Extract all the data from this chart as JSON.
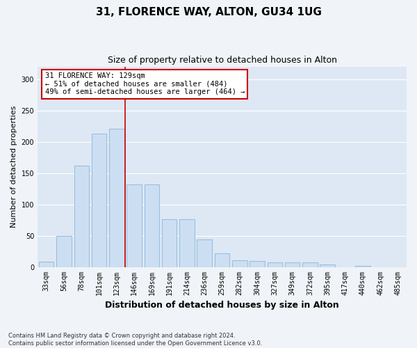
{
  "title": "31, FLORENCE WAY, ALTON, GU34 1UG",
  "subtitle": "Size of property relative to detached houses in Alton",
  "xlabel": "Distribution of detached houses by size in Alton",
  "ylabel": "Number of detached properties",
  "categories": [
    "33sqm",
    "56sqm",
    "78sqm",
    "101sqm",
    "123sqm",
    "146sqm",
    "169sqm",
    "191sqm",
    "214sqm",
    "236sqm",
    "259sqm",
    "282sqm",
    "304sqm",
    "327sqm",
    "349sqm",
    "372sqm",
    "395sqm",
    "417sqm",
    "440sqm",
    "462sqm",
    "485sqm"
  ],
  "values": [
    8,
    49,
    162,
    213,
    221,
    132,
    132,
    76,
    76,
    44,
    22,
    11,
    9,
    7,
    7,
    7,
    4,
    0,
    2,
    0,
    0
  ],
  "bar_color": "#ccdff2",
  "bar_edgecolor": "#9bbfde",
  "vline_color": "#cc0000",
  "vline_index": 4.5,
  "annotation_text": "31 FLORENCE WAY: 129sqm\n← 51% of detached houses are smaller (484)\n49% of semi-detached houses are larger (464) →",
  "annotation_box_facecolor": "#ffffff",
  "annotation_box_edgecolor": "#cc0000",
  "ylim": [
    0,
    320
  ],
  "yticks": [
    0,
    50,
    100,
    150,
    200,
    250,
    300
  ],
  "footer": "Contains HM Land Registry data © Crown copyright and database right 2024.\nContains public sector information licensed under the Open Government Licence v3.0.",
  "fig_facecolor": "#f0f4f8",
  "plot_bg_color": "#dde8f4",
  "title_fontsize": 11,
  "subtitle_fontsize": 9,
  "tick_fontsize": 7,
  "ylabel_fontsize": 8,
  "xlabel_fontsize": 9,
  "annotation_fontsize": 7.5,
  "footer_fontsize": 6
}
